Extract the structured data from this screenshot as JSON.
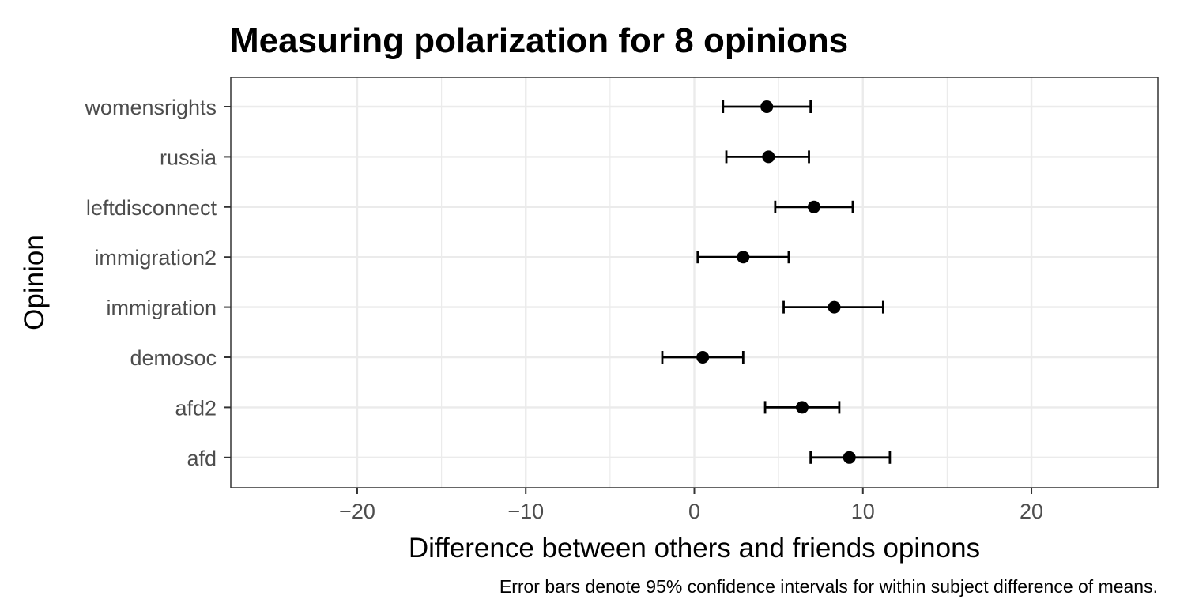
{
  "chart_data": {
    "type": "errorbar",
    "title": "Measuring polarization for 8 opinions",
    "xlabel": "Difference between others and friends opinons",
    "ylabel": "Opinion",
    "caption": "Error bars denote 95% confidence intervals for within subject difference of means.",
    "xlim": [
      -27.5,
      27.5
    ],
    "x_ticks": [
      -20,
      -10,
      0,
      10,
      20
    ],
    "x_tick_labels": [
      "−20",
      "−10",
      "0",
      "10",
      "20"
    ],
    "grid": true,
    "categories": [
      "womensrights",
      "russia",
      "leftdisconnect",
      "immigration2",
      "immigration",
      "demosoc",
      "afd2",
      "afd"
    ],
    "values": [
      4.3,
      4.4,
      7.1,
      2.9,
      8.3,
      0.5,
      6.4,
      9.2
    ],
    "lower": [
      1.7,
      1.9,
      4.8,
      0.2,
      5.3,
      -1.9,
      4.2,
      6.9
    ],
    "upper": [
      6.9,
      6.8,
      9.4,
      5.6,
      11.2,
      2.9,
      8.6,
      11.6
    ],
    "colors": {
      "point": "#000000",
      "errorbar": "#000000",
      "grid": "#ebebeb",
      "panel_border": "#333333",
      "tick_text": "#4d4d4d"
    }
  }
}
